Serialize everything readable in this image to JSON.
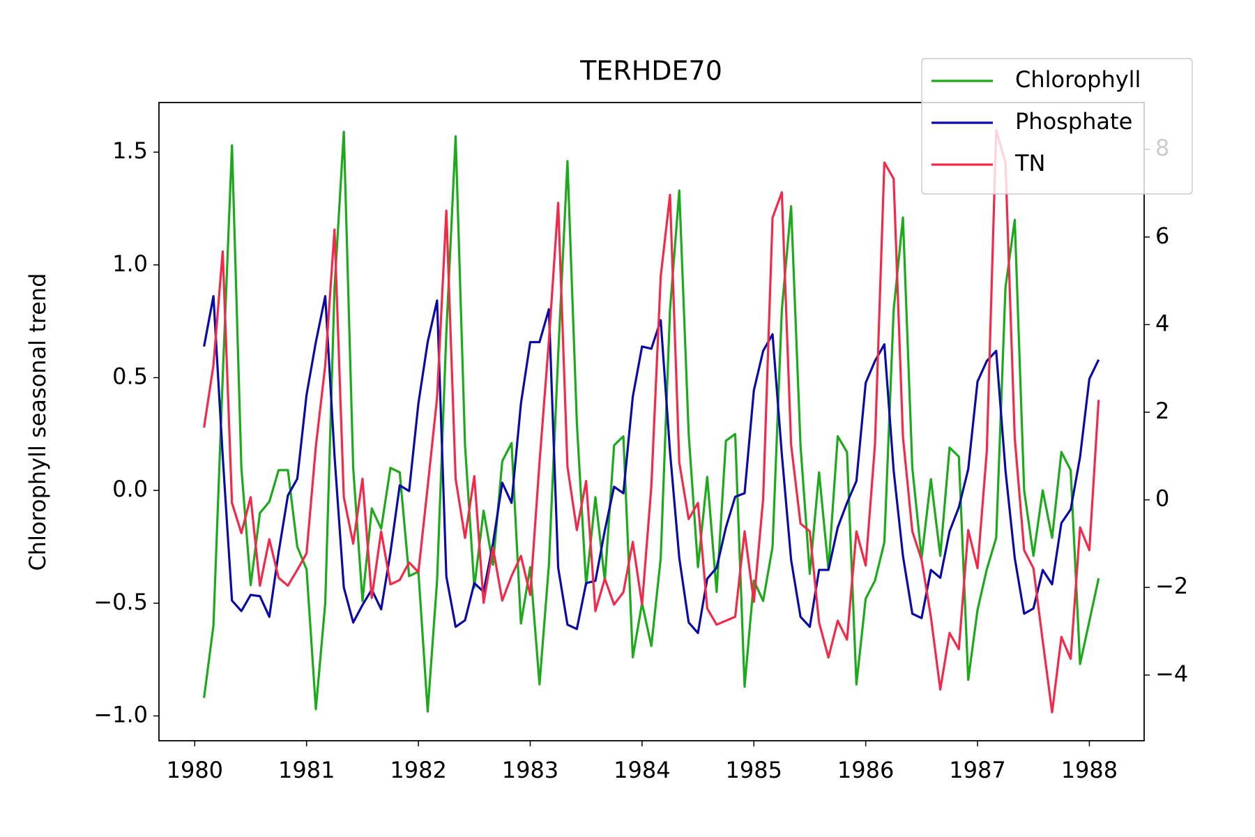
{
  "chart_data": {
    "type": "line",
    "title": "TERHDE70",
    "y_label": "Chlorophyll seasonal trend",
    "x": [
      1980.083,
      1980.167,
      1980.25,
      1980.333,
      1980.417,
      1980.5,
      1980.583,
      1980.667,
      1980.75,
      1980.833,
      1980.917,
      1981.0,
      1981.083,
      1981.167,
      1981.25,
      1981.333,
      1981.417,
      1981.5,
      1981.583,
      1981.667,
      1981.75,
      1981.833,
      1981.917,
      1982.0,
      1982.083,
      1982.167,
      1982.25,
      1982.333,
      1982.417,
      1982.5,
      1982.583,
      1982.667,
      1982.75,
      1982.833,
      1982.917,
      1983.0,
      1983.083,
      1983.167,
      1983.25,
      1983.333,
      1983.417,
      1983.5,
      1983.583,
      1983.667,
      1983.75,
      1983.833,
      1983.917,
      1984.0,
      1984.083,
      1984.167,
      1984.25,
      1984.333,
      1984.417,
      1984.5,
      1984.583,
      1984.667,
      1984.75,
      1984.833,
      1984.917,
      1985.0,
      1985.083,
      1985.167,
      1985.25,
      1985.333,
      1985.417,
      1985.5,
      1985.583,
      1985.667,
      1985.75,
      1985.833,
      1985.917,
      1986.0,
      1986.083,
      1986.167,
      1986.25,
      1986.333,
      1986.417,
      1986.5,
      1986.583,
      1986.667,
      1986.75,
      1986.833,
      1986.917,
      1987.0,
      1987.083,
      1987.167,
      1987.25,
      1987.333,
      1987.417,
      1987.5,
      1987.583,
      1987.667,
      1987.75,
      1987.833,
      1987.917,
      1988.0,
      1988.083
    ],
    "series": [
      {
        "name": "Chlorophyll",
        "color": "#1aaa1a",
        "values": [
          -0.92,
          -0.6,
          0.5,
          1.53,
          0.1,
          -0.42,
          -0.1,
          -0.05,
          0.09,
          0.09,
          -0.25,
          -0.35,
          -0.97,
          -0.5,
          0.9,
          1.59,
          0.1,
          -0.49,
          -0.08,
          -0.17,
          0.1,
          0.08,
          -0.38,
          -0.36,
          -0.98,
          -0.4,
          0.7,
          1.57,
          0.2,
          -0.43,
          -0.09,
          -0.33,
          0.13,
          0.21,
          -0.59,
          -0.34,
          -0.86,
          -0.33,
          0.6,
          1.46,
          0.3,
          -0.42,
          -0.03,
          -0.4,
          0.2,
          0.24,
          -0.74,
          -0.5,
          -0.69,
          -0.3,
          0.8,
          1.33,
          0.25,
          -0.34,
          0.06,
          -0.45,
          0.22,
          0.25,
          -0.87,
          -0.4,
          -0.49,
          -0.25,
          0.8,
          1.26,
          0.2,
          -0.37,
          0.08,
          -0.35,
          0.24,
          0.17,
          -0.86,
          -0.48,
          -0.4,
          -0.23,
          0.8,
          1.21,
          0.1,
          -0.3,
          0.05,
          -0.29,
          0.19,
          0.15,
          -0.84,
          -0.53,
          -0.35,
          -0.21,
          0.9,
          1.2,
          0.0,
          -0.29,
          0.0,
          -0.21,
          0.17,
          0.09,
          -0.77,
          -0.58,
          -0.39
        ]
      },
      {
        "name": "Phosphate",
        "color": "#0a0aaa",
        "axis": "y2",
        "values": [
          3.5,
          4.65,
          1.0,
          -2.3,
          -2.54,
          -2.17,
          -2.2,
          -2.67,
          -1.2,
          0.1,
          0.48,
          2.4,
          3.6,
          4.65,
          1.0,
          -2.0,
          -2.8,
          -2.4,
          -2.05,
          -2.5,
          -1.2,
          0.33,
          0.2,
          2.2,
          3.6,
          4.55,
          -1.75,
          -2.9,
          -2.75,
          -1.9,
          -2.1,
          -1.0,
          0.39,
          -0.07,
          2.2,
          3.6,
          3.6,
          4.35,
          -1.55,
          -2.85,
          -2.95,
          -1.9,
          -1.85,
          -0.7,
          0.3,
          0.15,
          2.35,
          3.5,
          3.45,
          4.1,
          1.1,
          -1.33,
          -2.8,
          -3.04,
          -1.8,
          -1.55,
          -0.63,
          0.07,
          0.15,
          2.5,
          3.4,
          3.78,
          1.04,
          -1.37,
          -2.67,
          -2.9,
          -1.6,
          -1.6,
          -0.63,
          -0.07,
          0.43,
          2.67,
          3.17,
          3.55,
          0.67,
          -1.28,
          -2.6,
          -2.7,
          -1.6,
          -1.78,
          -0.72,
          -0.17,
          0.7,
          2.7,
          3.17,
          3.4,
          0.67,
          -1.33,
          -2.6,
          -2.48,
          -1.6,
          -1.93,
          -0.53,
          -0.22,
          0.98,
          2.76,
          3.2
        ]
      },
      {
        "name": "TN",
        "color": "#f5284a",
        "axis": "y2",
        "values": [
          1.65,
          3.07,
          5.67,
          -0.07,
          -0.76,
          0.06,
          -1.96,
          -0.9,
          -1.78,
          -1.96,
          -1.6,
          -1.22,
          1.22,
          3.07,
          6.17,
          0.06,
          -1.0,
          0.48,
          -2.24,
          -0.72,
          -1.93,
          -1.83,
          -1.43,
          -1.65,
          0.3,
          2.33,
          6.6,
          0.48,
          -0.87,
          0.54,
          -2.35,
          -1.09,
          -2.3,
          -1.74,
          -1.28,
          -2.17,
          0.85,
          3.63,
          6.78,
          0.76,
          -0.69,
          0.43,
          -2.54,
          -1.8,
          -2.39,
          -2.11,
          -0.96,
          -2.39,
          0.3,
          5.1,
          6.96,
          0.85,
          -0.44,
          -0.07,
          -2.48,
          -2.85,
          -2.76,
          -2.67,
          -0.72,
          -2.33,
          0.02,
          6.44,
          7.02,
          1.26,
          -0.54,
          -0.72,
          -2.8,
          -3.6,
          -2.76,
          -3.19,
          -0.72,
          -1.5,
          1.26,
          7.7,
          7.33,
          1.44,
          -0.72,
          -1.37,
          -2.67,
          -4.33,
          -3.04,
          -3.41,
          -0.69,
          -1.56,
          1.11,
          8.44,
          7.7,
          1.41,
          -1.15,
          -1.56,
          -3.22,
          -4.85,
          -3.13,
          -3.63,
          -0.63,
          -1.15,
          2.28
        ]
      }
    ],
    "xlim": [
      1979.68,
      1988.49
    ],
    "xticks": [
      1980,
      1981,
      1982,
      1983,
      1984,
      1985,
      1986,
      1987,
      1988
    ],
    "ylim": [
      -1.11,
      1.72
    ],
    "yticks": [
      {
        "value": -1.0,
        "label": "−1.0"
      },
      {
        "value": -0.5,
        "label": "−0.5"
      },
      {
        "value": 0.0,
        "label": "0.0"
      },
      0.5,
      {
        "value": 1.0,
        "label": "1.0"
      },
      1.5
    ],
    "y2lim": [
      -5.5,
      9.07
    ],
    "y2ticks": [
      {
        "value": -4,
        "label": "−4"
      },
      {
        "value": -2,
        "label": "−2"
      },
      0,
      2,
      4,
      6,
      8
    ],
    "grid": false,
    "legend": "upper right"
  }
}
